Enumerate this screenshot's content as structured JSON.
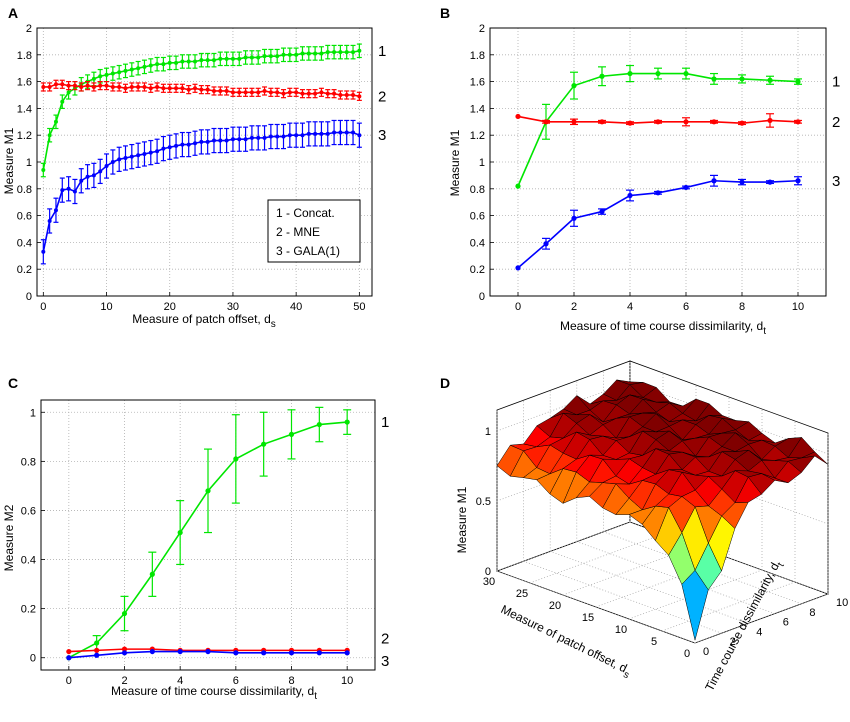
{
  "figure": {
    "panels": [
      "A",
      "B",
      "C",
      "D"
    ],
    "colors": {
      "concat": "#00e600",
      "mne": "#ff0000",
      "gala": "#0000ff"
    },
    "legend": [
      "1 -  Concat.",
      "2 -  MNE",
      "3 -  GALA(1)"
    ]
  },
  "chart_data": [
    {
      "panel": "A",
      "type": "line",
      "xlabel": "Measure of patch offset, d",
      "xlabel_sub": "s",
      "ylabel": "Measure M1",
      "xlim": [
        -1,
        52
      ],
      "ylim": [
        0,
        2
      ],
      "xticks": [
        "0",
        "10",
        "20",
        "30",
        "40",
        "50"
      ],
      "yticks": [
        "0",
        "0.2",
        "0.4",
        "0.6",
        "0.8",
        "1",
        "1.2",
        "1.4",
        "1.6",
        "1.8",
        "2"
      ],
      "x": [
        0,
        1,
        2,
        3,
        4,
        5,
        6,
        7,
        8,
        9,
        10,
        11,
        12,
        13,
        14,
        15,
        16,
        17,
        18,
        19,
        20,
        21,
        22,
        23,
        24,
        25,
        26,
        27,
        28,
        29,
        30,
        31,
        32,
        33,
        34,
        35,
        36,
        37,
        38,
        39,
        40,
        41,
        42,
        43,
        44,
        45,
        46,
        47,
        48,
        49,
        50
      ],
      "series": [
        {
          "name": "Concat.",
          "label": "1",
          "color": "#00e600",
          "values": [
            0.94,
            1.2,
            1.3,
            1.45,
            1.52,
            1.55,
            1.58,
            1.6,
            1.62,
            1.64,
            1.65,
            1.66,
            1.67,
            1.68,
            1.69,
            1.7,
            1.71,
            1.72,
            1.73,
            1.73,
            1.74,
            1.74,
            1.75,
            1.75,
            1.75,
            1.76,
            1.76,
            1.76,
            1.77,
            1.77,
            1.77,
            1.77,
            1.78,
            1.78,
            1.78,
            1.79,
            1.79,
            1.79,
            1.8,
            1.8,
            1.8,
            1.81,
            1.81,
            1.81,
            1.81,
            1.82,
            1.82,
            1.82,
            1.82,
            1.82,
            1.83
          ],
          "err": 0.05
        },
        {
          "name": "MNE",
          "label": "2",
          "color": "#ff0000",
          "values": [
            1.56,
            1.56,
            1.58,
            1.58,
            1.57,
            1.57,
            1.56,
            1.57,
            1.56,
            1.57,
            1.57,
            1.56,
            1.56,
            1.55,
            1.56,
            1.56,
            1.56,
            1.55,
            1.56,
            1.55,
            1.55,
            1.55,
            1.55,
            1.54,
            1.55,
            1.54,
            1.54,
            1.53,
            1.53,
            1.53,
            1.52,
            1.52,
            1.52,
            1.52,
            1.52,
            1.53,
            1.52,
            1.52,
            1.51,
            1.52,
            1.52,
            1.51,
            1.51,
            1.51,
            1.52,
            1.51,
            1.51,
            1.5,
            1.5,
            1.5,
            1.49
          ],
          "err": 0.03
        },
        {
          "name": "GALA(1)",
          "label": "3",
          "color": "#0000ff",
          "values": [
            0.33,
            0.56,
            0.64,
            0.79,
            0.8,
            0.78,
            0.86,
            0.89,
            0.9,
            0.93,
            0.97,
            1.0,
            1.02,
            1.03,
            1.04,
            1.05,
            1.06,
            1.07,
            1.08,
            1.1,
            1.11,
            1.12,
            1.13,
            1.13,
            1.14,
            1.15,
            1.15,
            1.16,
            1.16,
            1.16,
            1.17,
            1.17,
            1.17,
            1.18,
            1.18,
            1.18,
            1.19,
            1.19,
            1.19,
            1.2,
            1.2,
            1.2,
            1.21,
            1.21,
            1.21,
            1.21,
            1.22,
            1.22,
            1.22,
            1.22,
            1.2
          ],
          "err": 0.09
        }
      ]
    },
    {
      "panel": "B",
      "type": "line",
      "xlabel": "Measure of time course dissimilarity, d",
      "xlabel_sub": "t",
      "ylabel": "Measure M1",
      "xlim": [
        -1,
        11
      ],
      "ylim": [
        0,
        2
      ],
      "xticks": [
        "0",
        "2",
        "4",
        "6",
        "8",
        "10"
      ],
      "yticks": [
        "0",
        "0.2",
        "0.4",
        "0.6",
        "0.8",
        "1",
        "1.2",
        "1.4",
        "1.6",
        "1.8",
        "2"
      ],
      "x": [
        0,
        1,
        2,
        3,
        4,
        5,
        6,
        7,
        8,
        9,
        10
      ],
      "series": [
        {
          "name": "Concat.",
          "label": "1",
          "color": "#00e600",
          "values": [
            0.82,
            1.3,
            1.57,
            1.64,
            1.66,
            1.66,
            1.66,
            1.62,
            1.62,
            1.61,
            1.6
          ],
          "err": [
            0,
            0.13,
            0.1,
            0.07,
            0.06,
            0.04,
            0.04,
            0.04,
            0.03,
            0.03,
            0.02
          ]
        },
        {
          "name": "MNE",
          "label": "2",
          "color": "#ff0000",
          "values": [
            1.34,
            1.3,
            1.3,
            1.3,
            1.29,
            1.3,
            1.3,
            1.3,
            1.29,
            1.31,
            1.3
          ],
          "err": [
            0,
            0.01,
            0.02,
            0.01,
            0.01,
            0.01,
            0.03,
            0.01,
            0.01,
            0.05,
            0.01
          ]
        },
        {
          "name": "GALA(1)",
          "label": "3",
          "color": "#0000ff",
          "values": [
            0.21,
            0.39,
            0.58,
            0.63,
            0.75,
            0.77,
            0.81,
            0.86,
            0.85,
            0.85,
            0.86
          ],
          "err": [
            0,
            0.04,
            0.06,
            0.02,
            0.04,
            0.01,
            0.01,
            0.04,
            0.02,
            0.01,
            0.03
          ]
        }
      ]
    },
    {
      "panel": "C",
      "type": "line",
      "xlabel": "Measure of time course dissimilarity, d",
      "xlabel_sub": "t",
      "ylabel": "Measure M2",
      "xlim": [
        -1,
        11
      ],
      "ylim": [
        -0.05,
        1.05
      ],
      "xticks": [
        "0",
        "2",
        "4",
        "6",
        "8",
        "10"
      ],
      "yticks": [
        "0",
        "0.2",
        "0.4",
        "0.6",
        "0.8",
        "1"
      ],
      "x": [
        0,
        1,
        2,
        3,
        4,
        5,
        6,
        7,
        8,
        9,
        10
      ],
      "series": [
        {
          "name": "Concat.",
          "label": "1",
          "color": "#00e600",
          "values": [
            0.0,
            0.06,
            0.18,
            0.34,
            0.51,
            0.68,
            0.81,
            0.87,
            0.91,
            0.95,
            0.96
          ],
          "err": [
            0,
            0.03,
            0.07,
            0.09,
            0.13,
            0.17,
            0.18,
            0.13,
            0.1,
            0.07,
            0.05
          ]
        },
        {
          "name": "MNE",
          "label": "2",
          "color": "#ff0000",
          "values": [
            0.025,
            0.03,
            0.035,
            0.035,
            0.03,
            0.03,
            0.03,
            0.03,
            0.03,
            0.03,
            0.03
          ],
          "err": 0
        },
        {
          "name": "GALA(1)",
          "label": "3",
          "color": "#0000ff",
          "values": [
            0.0,
            0.01,
            0.02,
            0.025,
            0.025,
            0.025,
            0.02,
            0.02,
            0.02,
            0.02,
            0.02
          ],
          "err": 0
        }
      ]
    },
    {
      "panel": "D",
      "type": "surface",
      "zlabel": "Measure M1",
      "xlabel": "Measure of patch offset, d",
      "xlabel_sub": "s",
      "ylabel": "Time course dissimilarity, d",
      "ylabel_sub": "t",
      "ds_ticks": [
        "0",
        "5",
        "10",
        "15",
        "20",
        "25",
        "30"
      ],
      "dt_ticks": [
        "0",
        "2",
        "4",
        "6",
        "8",
        "10"
      ],
      "z_ticks": [
        "0",
        "0.5",
        "1"
      ],
      "ds_range": [
        0,
        30
      ],
      "dt_range": [
        0,
        10
      ],
      "z_range": [
        0,
        1
      ]
    }
  ]
}
